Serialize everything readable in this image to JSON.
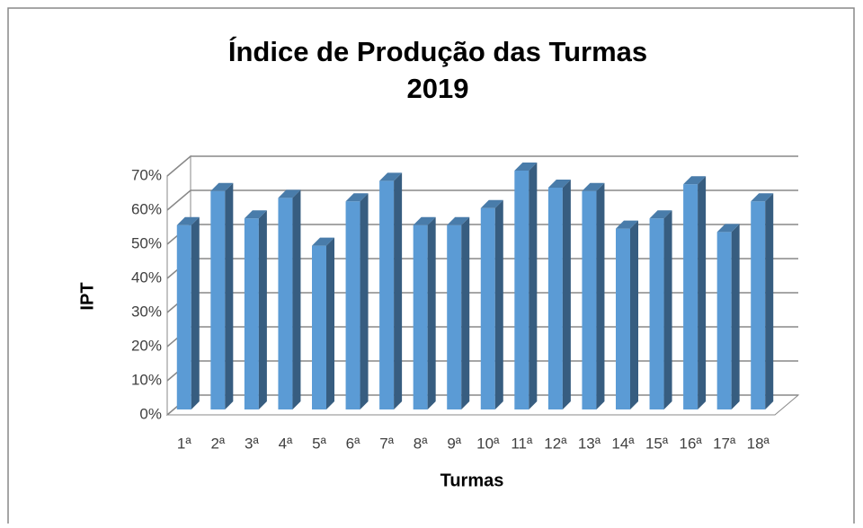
{
  "chart_data": {
    "type": "bar3d",
    "title": "Índice de Produção das Turmas",
    "subtitle": "2019",
    "x_label": "Turmas",
    "y_label": "IPT",
    "categories": [
      "1ª",
      "2ª",
      "3ª",
      "4ª",
      "5ª",
      "6ª",
      "7ª",
      "8ª",
      "9ª",
      "10ª",
      "11ª",
      "12ª",
      "13ª",
      "14ª",
      "15ª",
      "16ª",
      "17ª",
      "18ª"
    ],
    "values": [
      54,
      64,
      56,
      62,
      48,
      61,
      67,
      54,
      54,
      59,
      70,
      65,
      64,
      53,
      56,
      66,
      52,
      61
    ],
    "color": "#5b9bd5",
    "ylim": [
      0,
      70
    ],
    "yticks": [
      {
        "value": 0,
        "label": "0%"
      },
      {
        "value": 10,
        "label": "10%"
      },
      {
        "value": 20,
        "label": "20%"
      },
      {
        "value": 30,
        "label": "30%"
      },
      {
        "value": 40,
        "label": "40%"
      },
      {
        "value": 50,
        "label": "50%"
      },
      {
        "value": 60,
        "label": "60%"
      },
      {
        "value": 70,
        "label": "70%"
      }
    ],
    "grid": true
  }
}
